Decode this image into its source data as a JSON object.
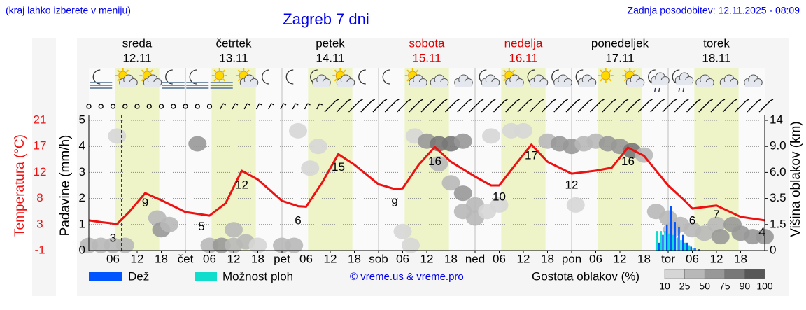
{
  "header": {
    "menu_note": "(kraj lahko izberete v meniju)",
    "title": "Zagreb 7 dni",
    "updated": "Zadnja posodobitev: 12.11.2025 - 08:09"
  },
  "chart_data": {
    "type": "meteogram",
    "days": [
      {
        "name": "sreda",
        "date": "12.11",
        "color": "#000000"
      },
      {
        "name": "četrtek",
        "date": "13.11",
        "color": "#000000"
      },
      {
        "name": "petek",
        "date": "14.11",
        "color": "#000000"
      },
      {
        "name": "sobota",
        "date": "15.11",
        "color": "#e00000"
      },
      {
        "name": "nedelja",
        "date": "16.11",
        "color": "#e00000"
      },
      {
        "name": "ponedeljek",
        "date": "17.11",
        "color": "#000000"
      },
      {
        "name": "torek",
        "date": "18.11",
        "color": "#000000"
      }
    ],
    "xlim": [
      0,
      168
    ],
    "xticks": [
      {
        "value": 6,
        "label": "06"
      },
      {
        "value": 12,
        "label": "12"
      },
      {
        "value": 18,
        "label": "18"
      },
      {
        "value": 24,
        "label": "čet"
      },
      {
        "value": 30,
        "label": "06"
      },
      {
        "value": 36,
        "label": "12"
      },
      {
        "value": 42,
        "label": "18"
      },
      {
        "value": 48,
        "label": "pet"
      },
      {
        "value": 54,
        "label": "06"
      },
      {
        "value": 60,
        "label": "12"
      },
      {
        "value": 66,
        "label": "18"
      },
      {
        "value": 72,
        "label": "sob"
      },
      {
        "value": 78,
        "label": "06"
      },
      {
        "value": 84,
        "label": "12"
      },
      {
        "value": 90,
        "label": "18"
      },
      {
        "value": 96,
        "label": "ned"
      },
      {
        "value": 102,
        "label": "06"
      },
      {
        "value": 108,
        "label": "12"
      },
      {
        "value": 114,
        "label": "18"
      },
      {
        "value": 120,
        "label": "pon"
      },
      {
        "value": 126,
        "label": "06"
      },
      {
        "value": 132,
        "label": "12"
      },
      {
        "value": 138,
        "label": "18"
      },
      {
        "value": 144,
        "label": "tor"
      },
      {
        "value": 150,
        "label": "06"
      },
      {
        "value": 156,
        "label": "12"
      },
      {
        "value": 162,
        "label": "18"
      }
    ],
    "y_label": "Padavine (mm/h)",
    "ylim": [
      0,
      5
    ],
    "yticks": [
      0,
      1,
      2,
      3,
      4,
      5
    ],
    "grid": true,
    "temp_label": "Temperatura (°C)",
    "temp_lim": [
      -1,
      21
    ],
    "temp_ticks": [
      -1,
      {
        "value": 3.4,
        "label": "3"
      },
      {
        "value": 7.8,
        "label": "8"
      },
      {
        "value": 12.2,
        "label": "12"
      },
      {
        "value": 16.6,
        "label": "17"
      },
      21
    ],
    "y2_label": "Višina oblakov (km)",
    "y2ticks": [
      0,
      1.5,
      3.5,
      {
        "value": 6,
        "label": "6.0"
      },
      {
        "value": 9,
        "label": "9.0"
      },
      14
    ],
    "temperature": {
      "color": "#ee1111",
      "x": [
        0,
        3,
        7,
        10,
        14,
        18,
        24,
        30,
        34,
        38,
        42,
        48,
        52,
        54,
        58,
        62,
        66,
        72,
        76,
        78,
        82,
        86,
        90,
        96,
        100,
        102,
        106,
        110,
        114,
        120,
        126,
        130,
        134,
        138,
        144,
        148,
        150,
        156,
        162,
        168
      ],
      "values": [
        4.1,
        3.8,
        3.5,
        5.5,
        8.7,
        7.5,
        5.5,
        4.9,
        7,
        12.5,
        11,
        7.4,
        6.5,
        6.4,
        10.5,
        15.3,
        13.5,
        10.2,
        9.4,
        9.5,
        13.5,
        16.5,
        14,
        11.5,
        10,
        10,
        13.5,
        16.9,
        14,
        12,
        12.5,
        13,
        16.4,
        15,
        10,
        7.5,
        6.1,
        6.6,
        4.7,
        4.1
      ]
    },
    "temp_labels": [
      {
        "hour": 6,
        "value": 3
      },
      {
        "hour": 14,
        "value": 9
      },
      {
        "hour": 28,
        "value": 5
      },
      {
        "hour": 38,
        "value": 12
      },
      {
        "hour": 52,
        "value": 6
      },
      {
        "hour": 62,
        "value": 15
      },
      {
        "hour": 76,
        "value": 9
      },
      {
        "hour": 86,
        "value": 16
      },
      {
        "hour": 102,
        "value": 10
      },
      {
        "hour": 110,
        "value": 17
      },
      {
        "hour": 120,
        "value": 12
      },
      {
        "hour": 134,
        "value": 16
      },
      {
        "hour": 150,
        "value": 6
      },
      {
        "hour": 156,
        "value": 7
      },
      {
        "hour": 168,
        "value": 4
      }
    ],
    "precip": {
      "x": [
        141,
        142,
        143,
        144,
        145,
        146,
        147,
        148,
        149,
        150,
        151
      ],
      "series": [
        {
          "name": "Dež",
          "color": "#0055ff",
          "values": [
            0.3,
            0.6,
            1,
            1.7,
            1.1,
            0.9,
            0.6,
            0.3,
            0.15,
            0.1,
            0.05
          ]
        },
        {
          "name": "Možnost ploh",
          "color": "#11ddcc",
          "values": [
            0.75,
            0.75,
            0.75,
            0.65,
            0.6,
            0.5,
            0.4,
            0.3,
            0.2,
            0.1,
            0
          ]
        }
      ]
    },
    "clouds": {
      "label": "Gostota oblakov (%)",
      "scale": [
        10,
        25,
        50,
        75,
        90,
        100
      ],
      "colors": [
        "#d6d6d6",
        "#b8b8b8",
        "#989898",
        "#787878",
        "#575757"
      ],
      "cells": [
        [
          7,
          11,
          25
        ],
        [
          0,
          0.3,
          50
        ],
        [
          3,
          0.3,
          50
        ],
        [
          6,
          0.3,
          40
        ],
        [
          9,
          0.3,
          30
        ],
        [
          17,
          2,
          50
        ],
        [
          18,
          1.2,
          75
        ],
        [
          20,
          1.5,
          40
        ],
        [
          27,
          9.5,
          75
        ],
        [
          30,
          0.3,
          50
        ],
        [
          33,
          0.3,
          75
        ],
        [
          36,
          0.3,
          50
        ],
        [
          36,
          1.2,
          40
        ],
        [
          39,
          0.5,
          30
        ],
        [
          42,
          0.3,
          25
        ],
        [
          48,
          0.3,
          50
        ],
        [
          51,
          0.3,
          40
        ],
        [
          52,
          12,
          25
        ],
        [
          55,
          6.5,
          25
        ],
        [
          57,
          9,
          20
        ],
        [
          78,
          1.1,
          25
        ],
        [
          80,
          0.3,
          25
        ],
        [
          81,
          11,
          25
        ],
        [
          84,
          10,
          75
        ],
        [
          87,
          9.5,
          90
        ],
        [
          90,
          9.5,
          90
        ],
        [
          93,
          10,
          75
        ],
        [
          87,
          7,
          50
        ],
        [
          90,
          5,
          50
        ],
        [
          93,
          4,
          75
        ],
        [
          93,
          2.5,
          50
        ],
        [
          96,
          3,
          50
        ],
        [
          96,
          2,
          40
        ],
        [
          99,
          2.5,
          25
        ],
        [
          102,
          3,
          25
        ],
        [
          100,
          11,
          25
        ],
        [
          105,
          12,
          25
        ],
        [
          108,
          12,
          25
        ],
        [
          114,
          10,
          50
        ],
        [
          117,
          9.5,
          75
        ],
        [
          120,
          9,
          75
        ],
        [
          123,
          9.5,
          50
        ],
        [
          121,
          3,
          25
        ],
        [
          126,
          10,
          50
        ],
        [
          129,
          9.5,
          75
        ],
        [
          132,
          9,
          75
        ],
        [
          135,
          8.5,
          90
        ],
        [
          138,
          8,
          50
        ],
        [
          141,
          2.5,
          40
        ],
        [
          144,
          2,
          50
        ],
        [
          145,
          1.2,
          50
        ],
        [
          147,
          1.5,
          50
        ],
        [
          150,
          1.2,
          40
        ],
        [
          153,
          1,
          50
        ],
        [
          156,
          1.5,
          40
        ],
        [
          157,
          0.8,
          75
        ],
        [
          160,
          1.5,
          75
        ],
        [
          162,
          1,
          60
        ],
        [
          165,
          0.8,
          75
        ],
        [
          168,
          0.8,
          60
        ]
      ]
    },
    "credit": "© vreme.us & vreme.pro"
  }
}
